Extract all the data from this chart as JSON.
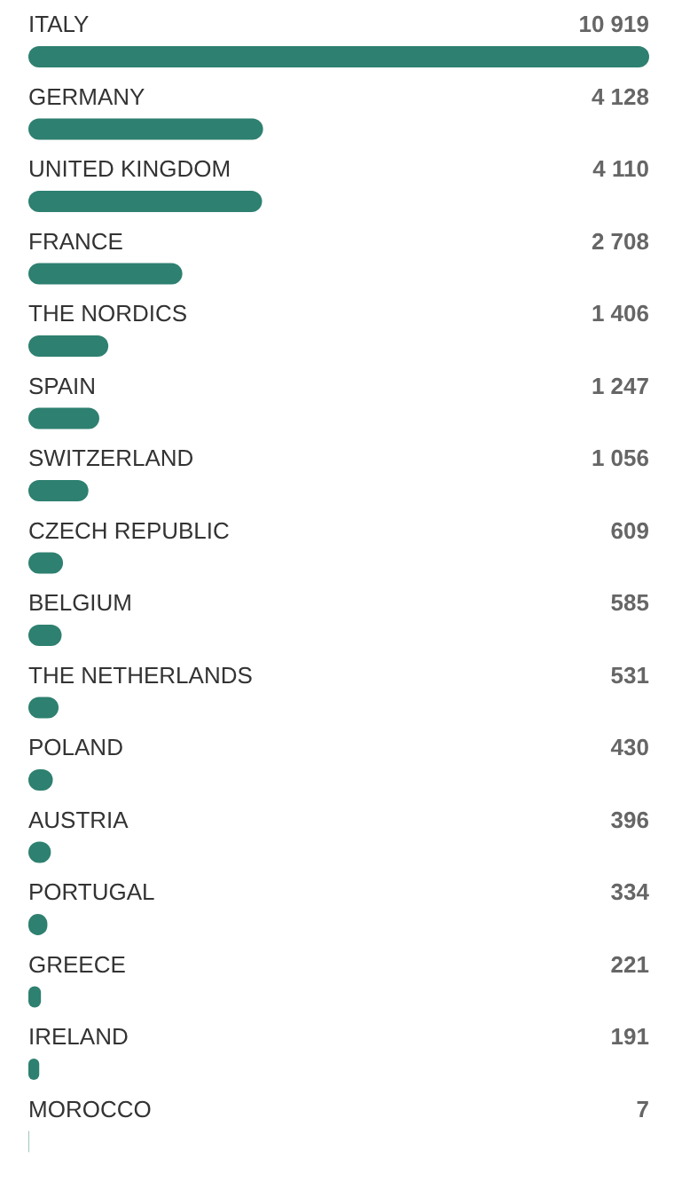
{
  "chart_data": {
    "type": "bar",
    "orientation": "horizontal",
    "categories": [
      "ITALY",
      "GERMANY",
      "UNITED KINGDOM",
      "FRANCE",
      "THE NORDICS",
      "SPAIN",
      "SWITZERLAND",
      "CZECH REPUBLIC",
      "BELGIUM",
      "THE NETHERLANDS",
      "POLAND",
      "AUSTRIA",
      "PORTUGAL",
      "GREECE",
      "IRELAND",
      "MOROCCO"
    ],
    "values": [
      10919,
      4128,
      4110,
      2708,
      1406,
      1247,
      1056,
      609,
      585,
      531,
      430,
      396,
      334,
      221,
      191,
      7
    ],
    "value_labels": [
      "10 919",
      "4 128",
      "4 110",
      "2 708",
      "1 406",
      "1 247",
      "1 056",
      "609",
      "585",
      "531",
      "430",
      "396",
      "334",
      "221",
      "191",
      "7"
    ],
    "color": "#2e8070"
  }
}
